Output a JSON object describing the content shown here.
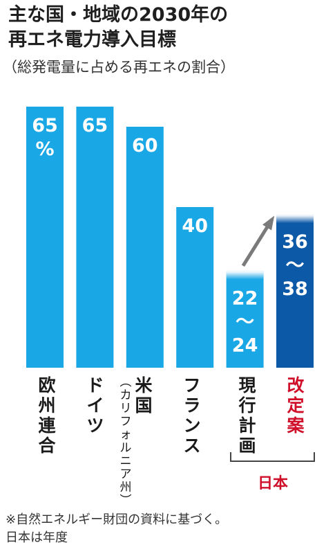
{
  "title_line1": "主な国・地域の2030年の",
  "title_line2": "再エネ電力導入目標",
  "subtitle": "（総発電量に占める再エネの割合）",
  "group_label": "日本",
  "note_line1": "※自然エネルギー財団の資料に基づく。",
  "note_line2": "日本は年度",
  "colors": {
    "bar": "#1aa7e6",
    "highlight": "#0c59a8",
    "red": "#d0102a"
  },
  "chart_data": {
    "type": "bar",
    "unit": "%",
    "categories": [
      "欧州連合",
      "ドイツ",
      "米国（カリフォルニア州）",
      "フランス",
      "現行計画",
      "改定案"
    ],
    "values": [
      65,
      65,
      60,
      40,
      [
        22,
        24
      ],
      [
        36,
        38
      ]
    ],
    "data_labels": [
      "65%",
      "65",
      "60",
      "40",
      "22〜24",
      "36〜38"
    ],
    "highlight": "改定案"
  }
}
